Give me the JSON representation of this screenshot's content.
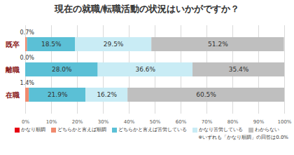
{
  "chart_data": {
    "type": "bar",
    "title": "現在の就職/転職活動の状況はいかがですか？",
    "orientation": "horizontal",
    "stacked": true,
    "data_labels": true,
    "grid": true,
    "legend": "bottom",
    "categories": [
      "既卒",
      "離職",
      "在職"
    ],
    "series": [
      {
        "name": "かなり順調",
        "color": "#e60012",
        "values": [
          0,
          0,
          0
        ],
        "data_labels": false
      },
      {
        "name": "どちらかと言えば順調",
        "color": "#f08a6e",
        "values": [
          0.7,
          0.0,
          1.4
        ],
        "value_labels": [
          "0.7%",
          "0.0%",
          "1.4%"
        ]
      },
      {
        "name": "どちらかと言えば苦労している",
        "color": "#5bc0d6",
        "values": [
          18.5,
          28.0,
          21.9
        ],
        "value_labels": [
          "18.5%",
          "28.0%",
          "21.9%"
        ]
      },
      {
        "name": "かなり苦労している",
        "color": "#c9ecf5",
        "values": [
          29.5,
          36.6,
          16.2
        ],
        "value_labels": [
          "29.5%",
          "36.6%",
          "16.2%"
        ]
      },
      {
        "name": "わからない",
        "color": "#bfbfbf",
        "values": [
          51.2,
          35.4,
          60.5
        ],
        "value_labels": [
          "51.2%",
          "35.4%",
          "60.5%"
        ]
      }
    ],
    "xlim": [
      0,
      100
    ],
    "xticks": [
      {
        "value": 0,
        "label": "0%"
      },
      {
        "value": 10,
        "label": "10%"
      },
      {
        "value": 20,
        "label": "20%"
      },
      {
        "value": 30,
        "label": "30%"
      },
      {
        "value": 40,
        "label": "40%"
      },
      {
        "value": 50,
        "label": "50%"
      },
      {
        "value": 60,
        "label": "60%"
      },
      {
        "value": 70,
        "label": "70%"
      },
      {
        "value": 80,
        "label": "80%"
      },
      {
        "value": 90,
        "label": "90%"
      },
      {
        "value": 100,
        "label": "100%"
      }
    ],
    "annotations": [
      "※いずれも「かなり順調」の回答は0.0%"
    ]
  }
}
